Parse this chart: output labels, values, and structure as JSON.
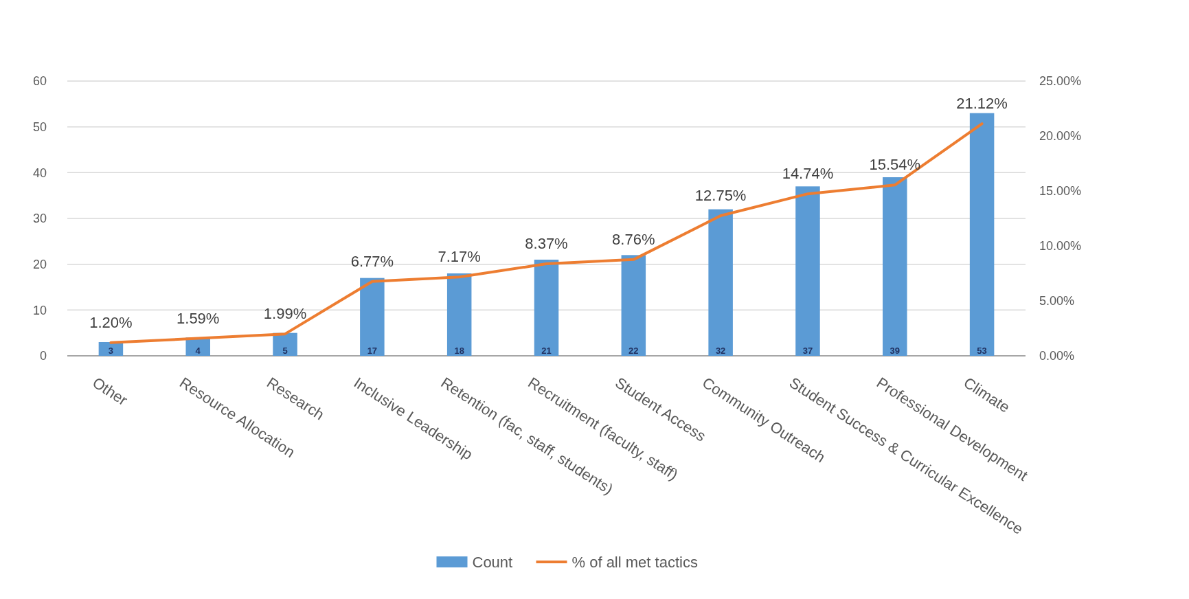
{
  "chart_data": {
    "type": "bar",
    "categories": [
      "Other",
      "Resource Allocation",
      "Research",
      "Inclusive Leadership",
      "Retention (fac, staff, students)",
      "Recruitment (faculty, staff)",
      "Student Access",
      "Community Outreach",
      "Student Success & Curricular Excellence",
      "Professional Development",
      "Climate"
    ],
    "series": [
      {
        "name": "Count",
        "color": "#5b9bd5",
        "values": [
          3,
          4,
          5,
          17,
          18,
          21,
          22,
          32,
          37,
          39,
          53
        ],
        "value_labels": [
          "3",
          "4",
          "5",
          "17",
          "18",
          "21",
          "22",
          "32",
          "37",
          "39",
          "53"
        ]
      },
      {
        "name": "% of all met tactics",
        "type": "line",
        "axis": "y2",
        "color": "#ed7d31",
        "values": [
          1.2,
          1.59,
          1.99,
          6.77,
          7.17,
          8.37,
          8.76,
          12.75,
          14.74,
          15.54,
          21.12
        ],
        "value_labels": [
          "1.20%",
          "1.59%",
          "1.99%",
          "6.77%",
          "7.17%",
          "8.37%",
          "8.76%",
          "12.75%",
          "14.74%",
          "15.54%",
          "21.12%"
        ]
      }
    ],
    "ylim": [
      0,
      60
    ],
    "yticks": [
      0,
      10,
      20,
      30,
      40,
      50,
      60
    ],
    "y2lim": [
      0,
      25
    ],
    "y2ticks": [
      {
        "value": 0,
        "label": "0.00%"
      },
      {
        "value": 5,
        "label": "5.00%"
      },
      {
        "value": 10,
        "label": "10.00%"
      },
      {
        "value": 15,
        "label": "15.00%"
      },
      {
        "value": 20,
        "label": "20.00%"
      },
      {
        "value": 25,
        "label": "25.00%"
      }
    ],
    "grid": "y",
    "legend": "bottom"
  }
}
